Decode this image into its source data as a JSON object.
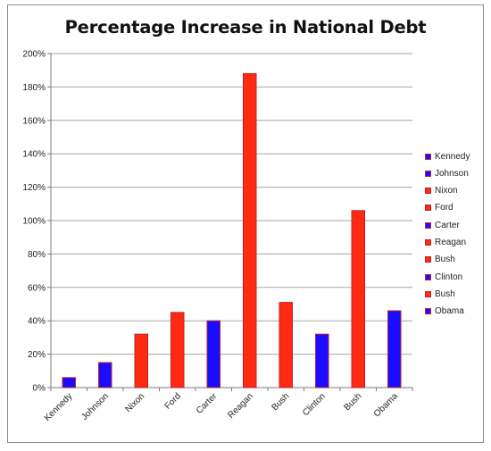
{
  "chart_data": {
    "type": "bar",
    "title": "Percentage Increase in National Debt",
    "xlabel": "",
    "ylabel": "",
    "categories": [
      "Kennedy",
      "Johnson",
      "Nixon",
      "Ford",
      "Carter",
      "Reagan",
      "Bush",
      "Clinton",
      "Bush",
      "Obama"
    ],
    "values": [
      6,
      15,
      32,
      45,
      40,
      188,
      51,
      32,
      106,
      46
    ],
    "colors": [
      "#1a0dff",
      "#1a0dff",
      "#ff2a12",
      "#ff2a12",
      "#1a0dff",
      "#ff2a12",
      "#ff2a12",
      "#1a0dff",
      "#ff2a12",
      "#1a0dff"
    ],
    "yticks": [
      "0%",
      "20%",
      "40%",
      "60%",
      "80%",
      "100%",
      "120%",
      "140%",
      "160%",
      "180%",
      "200%"
    ],
    "ylim": [
      0,
      200
    ],
    "grid": true,
    "legend_position": "right",
    "legend": [
      {
        "label": "Kennedy",
        "color": "#1a0dff"
      },
      {
        "label": "Johnson",
        "color": "#1a0dff"
      },
      {
        "label": "Nixon",
        "color": "#ff2a12"
      },
      {
        "label": "Ford",
        "color": "#ff2a12"
      },
      {
        "label": "Carter",
        "color": "#1a0dff"
      },
      {
        "label": "Reagan",
        "color": "#ff2a12"
      },
      {
        "label": "Bush",
        "color": "#ff2a12"
      },
      {
        "label": "Clinton",
        "color": "#1a0dff"
      },
      {
        "label": "Bush",
        "color": "#ff2a12"
      },
      {
        "label": "Obama",
        "color": "#1a0dff"
      }
    ],
    "bar_outline_color": "#c0202a"
  }
}
